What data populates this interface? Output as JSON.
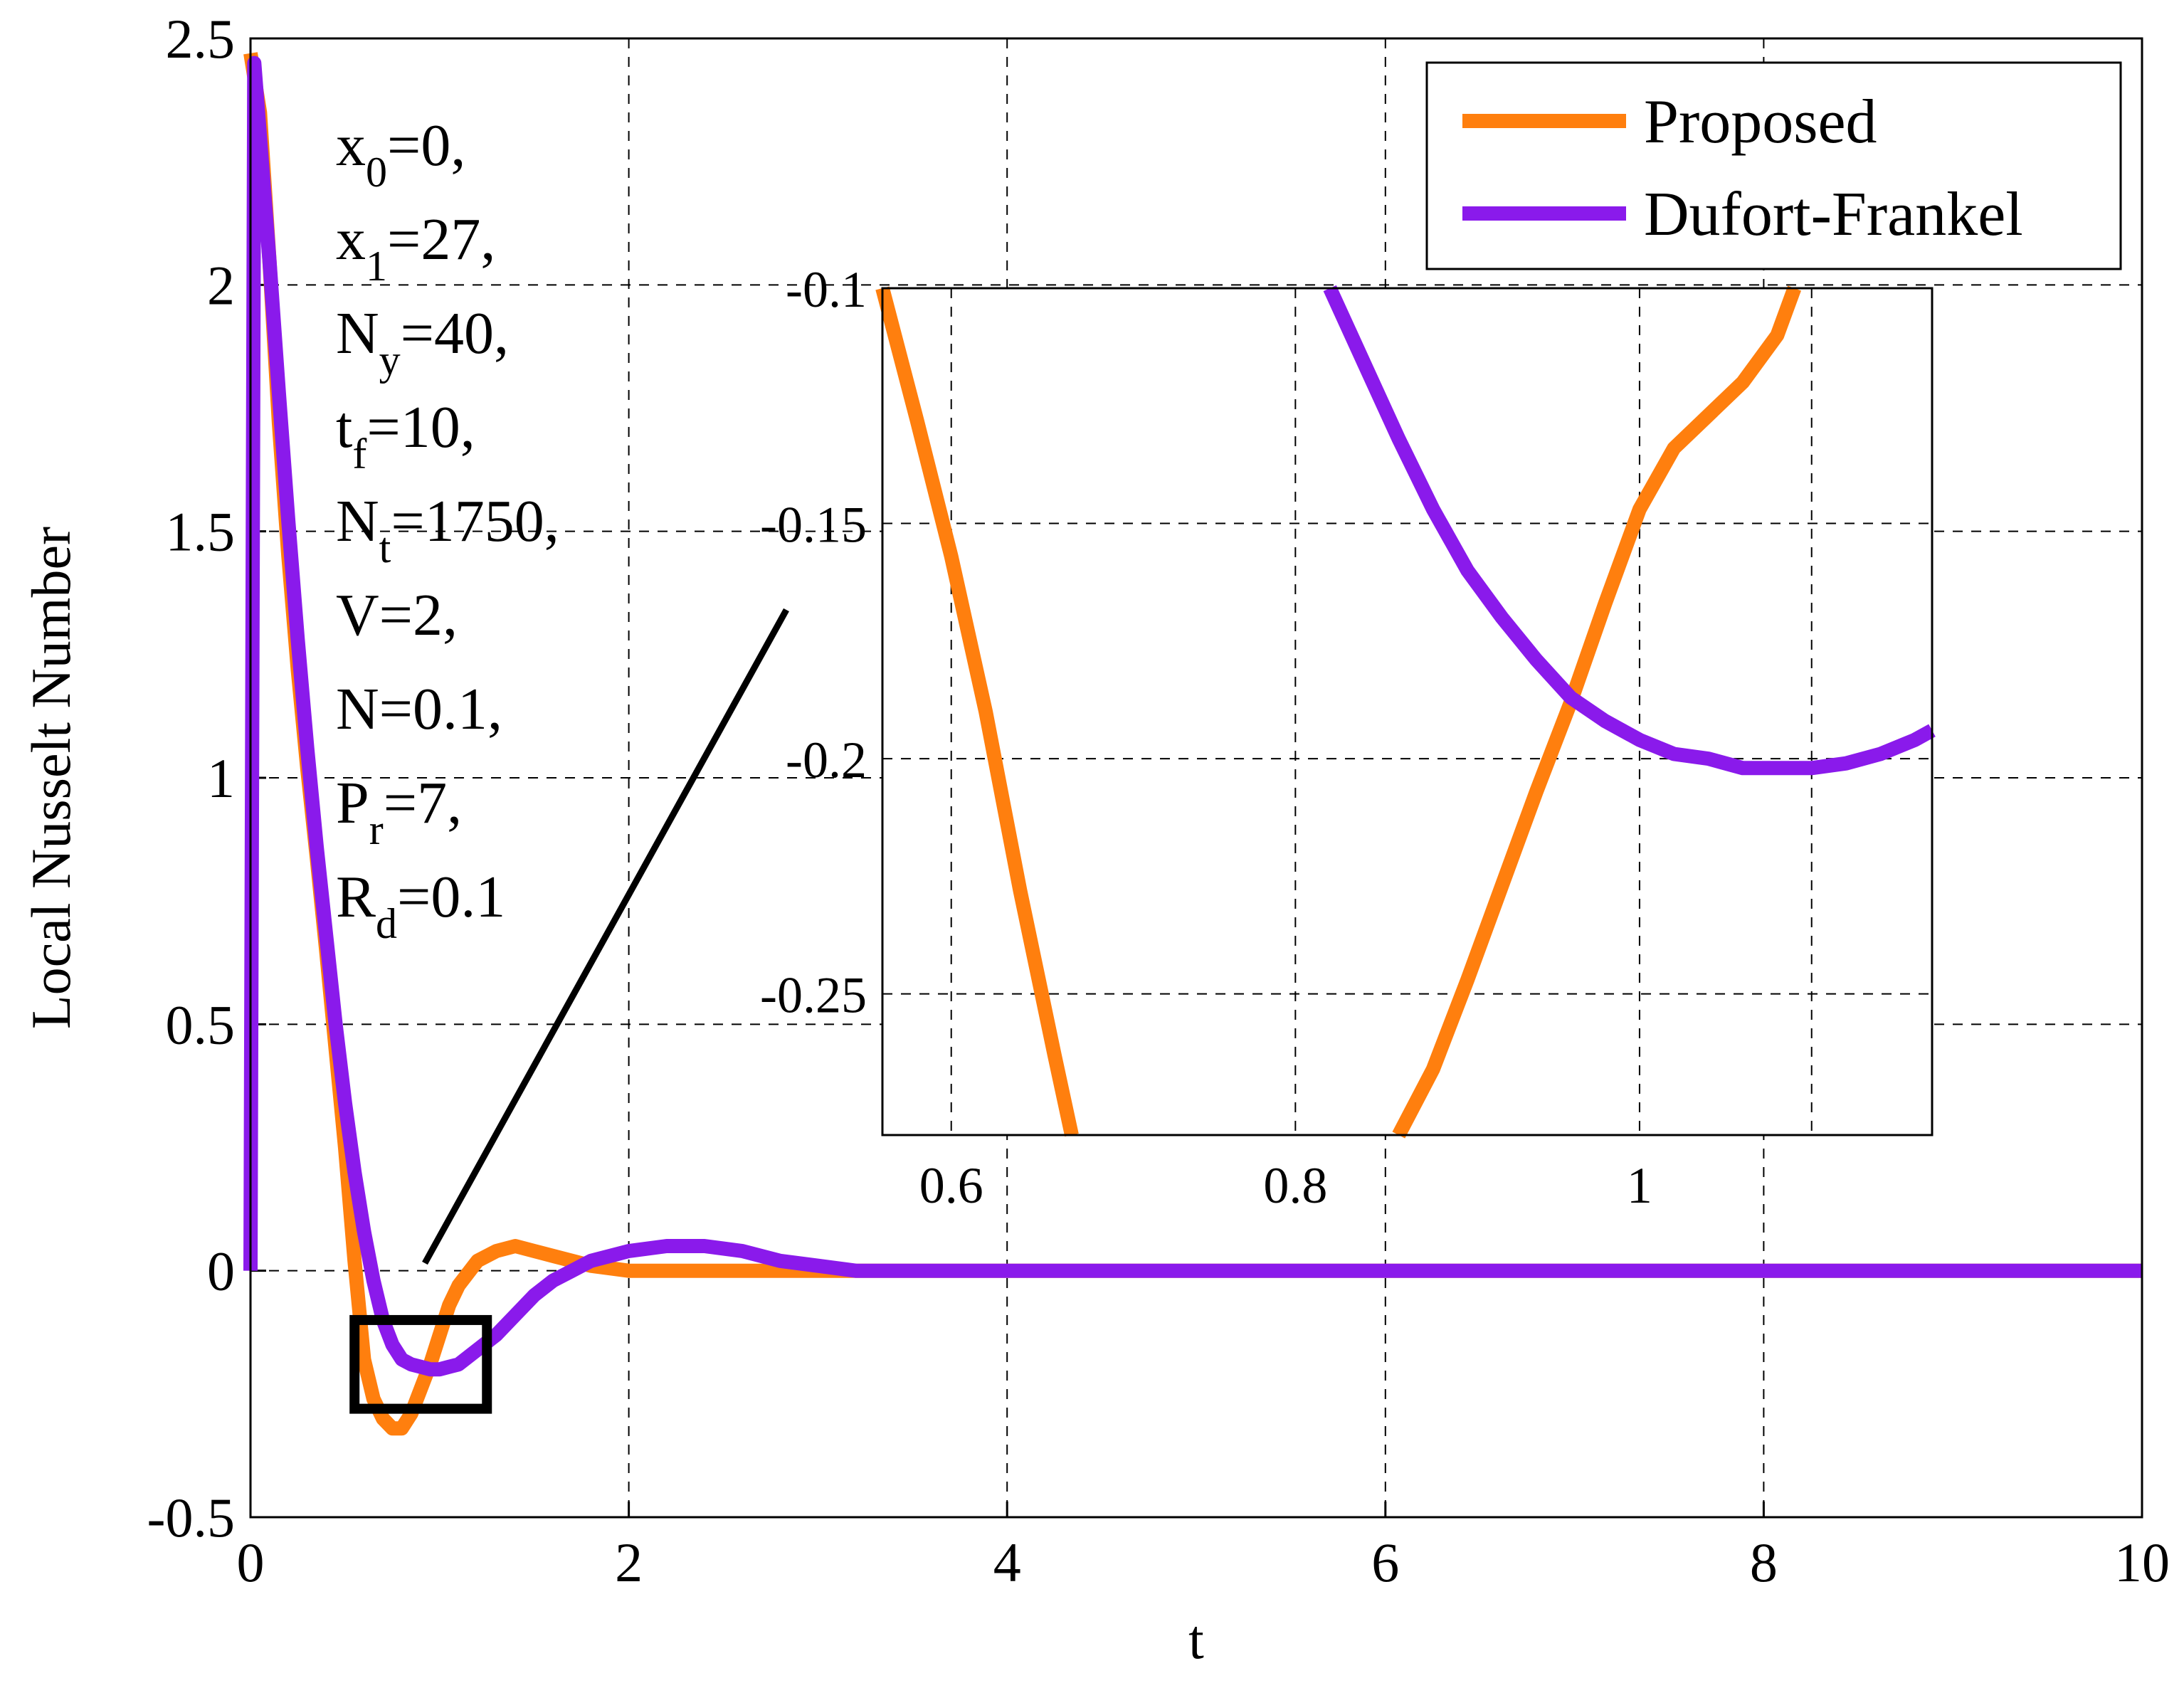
{
  "chart_data": {
    "type": "line",
    "xlabel": "t",
    "ylabel": "Local Nusselt Number",
    "xlim": [
      0,
      10
    ],
    "ylim": [
      -0.5,
      2.5
    ],
    "x_ticks": [
      "0",
      "2",
      "4",
      "6",
      "8",
      "10"
    ],
    "y_ticks": [
      "-0.5",
      "0",
      "0.5",
      "1",
      "1.5",
      "2",
      "2.5"
    ],
    "grid": true,
    "legend_position": "top-right",
    "colors": {
      "Proposed": "#ff7f0e",
      "Dufort-Frankel": "#8a1aeb",
      "zoom_box": "#000000"
    },
    "series": [
      {
        "name": "Proposed",
        "x": [
          0.0,
          0.05,
          0.1,
          0.15,
          0.2,
          0.25,
          0.3,
          0.35,
          0.4,
          0.45,
          0.5,
          0.55,
          0.6,
          0.65,
          0.7,
          0.75,
          0.8,
          0.85,
          0.9,
          0.95,
          1.0,
          1.05,
          1.1,
          1.2,
          1.3,
          1.4,
          1.5,
          1.6,
          1.7,
          1.8,
          1.9,
          2.0,
          2.2,
          2.4,
          2.6,
          2.8,
          3.0,
          3.5,
          4.0,
          5.0,
          6.0,
          7.0,
          8.0,
          9.0,
          10.0
        ],
        "y": [
          2.47,
          2.35,
          2.05,
          1.72,
          1.45,
          1.22,
          1.02,
          0.84,
          0.65,
          0.45,
          0.25,
          0.02,
          -0.18,
          -0.26,
          -0.3,
          -0.32,
          -0.32,
          -0.29,
          -0.24,
          -0.19,
          -0.13,
          -0.07,
          -0.03,
          0.02,
          0.04,
          0.05,
          0.04,
          0.03,
          0.02,
          0.01,
          0.005,
          0.0,
          0.0,
          0.0,
          0.0,
          0.0,
          0.0,
          0.0,
          0.0,
          0.0,
          0.0,
          0.0,
          0.0,
          0.0,
          0.0
        ]
      },
      {
        "name": "Dufort-Frankel",
        "x": [
          0.0,
          0.02,
          0.05,
          0.1,
          0.15,
          0.2,
          0.25,
          0.3,
          0.35,
          0.4,
          0.45,
          0.5,
          0.55,
          0.6,
          0.65,
          0.7,
          0.75,
          0.8,
          0.85,
          0.9,
          0.95,
          1.0,
          1.05,
          1.1,
          1.15,
          1.2,
          1.3,
          1.4,
          1.5,
          1.6,
          1.7,
          1.8,
          1.9,
          2.0,
          2.2,
          2.4,
          2.6,
          2.8,
          3.0,
          3.2,
          3.5,
          4.0,
          5.0,
          6.0,
          7.0,
          8.0,
          9.0,
          10.0
        ],
        "y": [
          0.0,
          2.45,
          2.3,
          2.05,
          1.78,
          1.52,
          1.28,
          1.06,
          0.86,
          0.68,
          0.5,
          0.34,
          0.2,
          0.08,
          -0.02,
          -0.1,
          -0.15,
          -0.18,
          -0.19,
          -0.195,
          -0.2,
          -0.2,
          -0.195,
          -0.19,
          -0.175,
          -0.16,
          -0.13,
          -0.09,
          -0.05,
          -0.02,
          0.0,
          0.02,
          0.03,
          0.04,
          0.05,
          0.05,
          0.04,
          0.02,
          0.01,
          0.0,
          0.0,
          0.0,
          0.0,
          0.0,
          0.0,
          0.0,
          0.0,
          0.0
        ]
      }
    ],
    "zoom_box": {
      "xlim": [
        0.55,
        1.25
      ],
      "ylim": [
        -0.28,
        -0.1
      ]
    },
    "inset": {
      "xlim": [
        0.56,
        1.17
      ],
      "ylim": [
        -0.28,
        -0.1
      ],
      "x_ticks": [
        {
          "value": 0.6,
          "label": "0.6"
        },
        {
          "value": 0.8,
          "label": "0.8"
        },
        {
          "value": 1.0,
          "label": "1"
        }
      ],
      "x_grid": [
        0.6,
        0.8,
        1.0,
        1.1
      ],
      "y_ticks": [
        {
          "value": -0.1,
          "label": "-0.1"
        },
        {
          "value": -0.15,
          "label": "-0.15"
        },
        {
          "value": -0.2,
          "label": "-0.2"
        },
        {
          "value": -0.25,
          "label": "-0.25"
        }
      ],
      "series": [
        {
          "name": "Proposed",
          "x": [
            0.56,
            0.58,
            0.6,
            0.62,
            0.64,
            0.66,
            0.67,
            null,
            0.86,
            0.88,
            0.9,
            0.92,
            0.94,
            0.96,
            0.98,
            1.0,
            1.02,
            1.04,
            1.06,
            1.08,
            1.09
          ],
          "y": [
            -0.1,
            -0.128,
            -0.157,
            -0.19,
            -0.228,
            -0.263,
            -0.28,
            null,
            -0.28,
            -0.266,
            -0.247,
            -0.227,
            -0.207,
            -0.188,
            -0.167,
            -0.147,
            -0.134,
            -0.127,
            -0.12,
            -0.11,
            -0.1
          ]
        },
        {
          "name": "Dufort-Frankel",
          "x": [
            0.82,
            0.84,
            0.86,
            0.88,
            0.9,
            0.92,
            0.94,
            0.96,
            0.98,
            1.0,
            1.02,
            1.04,
            1.06,
            1.08,
            1.1,
            1.12,
            1.14,
            1.16,
            1.17
          ],
          "y": [
            -0.1,
            -0.116,
            -0.132,
            -0.147,
            -0.16,
            -0.17,
            -0.179,
            -0.187,
            -0.192,
            -0.196,
            -0.199,
            -0.2,
            -0.202,
            -0.202,
            -0.202,
            -0.201,
            -0.199,
            -0.196,
            -0.194
          ]
        }
      ]
    },
    "annotations": [
      {
        "base": "x",
        "sub": "0",
        "rest": "=0,"
      },
      {
        "base": "x",
        "sub": "1",
        "rest": "=27,"
      },
      {
        "base": "N",
        "sub": "y",
        "rest": "=40,"
      },
      {
        "base": "t",
        "sub": "f",
        "rest": "=10,"
      },
      {
        "base": "N",
        "sub": "t",
        "rest": "=1750,"
      },
      {
        "base": "V",
        "sub": "",
        "rest": "=2,"
      },
      {
        "base": "N",
        "sub": "",
        "rest": "=0.1,"
      },
      {
        "base": " P",
        "sub": "r",
        "rest": "=7,"
      },
      {
        "base": "R",
        "sub": "d",
        "rest": "=0.1"
      }
    ]
  }
}
